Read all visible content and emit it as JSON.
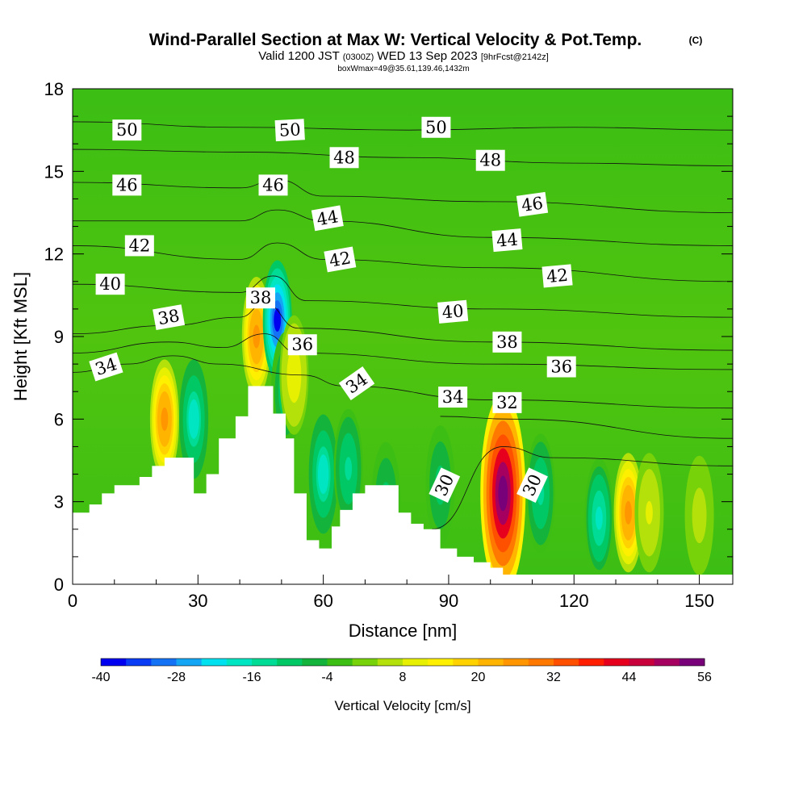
{
  "title": {
    "main": "Wind-Parallel Section at Max W: Vertical Velocity & Pot.Temp.",
    "main_suffix": "(C)",
    "valid_prefix": "Valid 1200 JST",
    "valid_zulu": "(0300Z)",
    "valid_date": "WED 13 Sep 2023",
    "forecast": "[9hrFcst@2142z]",
    "box_info": "boxWmax=49@35.61,139.46,1432m"
  },
  "colorbar": {
    "title": "Vertical Velocity [cm/s]",
    "tick_labels": [
      "-40",
      "-28",
      "-16",
      "-4",
      "8",
      "20",
      "32",
      "44",
      "56"
    ],
    "colors": [
      "#0000f0",
      "#0a3cf5",
      "#1473f5",
      "#14a5f5",
      "#00e1f0",
      "#00e6c3",
      "#00dc96",
      "#00c864",
      "#14b43c",
      "#3cbe14",
      "#78d20a",
      "#b4e10a",
      "#e6f000",
      "#fff000",
      "#ffd200",
      "#ffb400",
      "#ff9600",
      "#ff7800",
      "#ff5000",
      "#ff1e00",
      "#e6001e",
      "#c8003c",
      "#a5005f",
      "#780078"
    ]
  },
  "chart_data": {
    "type": "heatmap",
    "title": "Wind-Parallel Section at Max W: Vertical Velocity & Pot.Temp.",
    "xlabel": "Distance [nm]",
    "ylabel": "Height [Kft MSL]",
    "xlim": [
      0,
      158
    ],
    "ylim": [
      0,
      18
    ],
    "x_ticks": [
      0,
      30,
      60,
      90,
      120,
      150
    ],
    "y_ticks": [
      0,
      3,
      6,
      9,
      12,
      15,
      18
    ],
    "x_tick_labels": [
      "0",
      "30",
      "60",
      "90",
      "120",
      "150"
    ],
    "y_tick_labels": [
      "0",
      "3",
      "6",
      "9",
      "12",
      "15",
      "18"
    ],
    "colorbar_range": [
      -40,
      60
    ],
    "colorbar_units": "cm/s",
    "background_value": 2,
    "terrain_kft": [
      [
        0,
        2.6
      ],
      [
        4,
        2.9
      ],
      [
        7,
        3.3
      ],
      [
        10,
        3.6
      ],
      [
        16,
        3.9
      ],
      [
        19,
        4.3
      ],
      [
        22,
        4.6
      ],
      [
        26,
        4.6
      ],
      [
        29,
        3.3
      ],
      [
        32,
        4.0
      ],
      [
        35,
        5.3
      ],
      [
        39,
        6.1
      ],
      [
        42,
        7.2
      ],
      [
        45,
        7.2
      ],
      [
        48,
        6.2
      ],
      [
        51,
        5.3
      ],
      [
        53,
        3.3
      ],
      [
        56,
        1.6
      ],
      [
        59,
        1.3
      ],
      [
        62,
        2.1
      ],
      [
        64,
        2.7
      ],
      [
        67,
        3.3
      ],
      [
        70,
        3.6
      ],
      [
        74,
        3.6
      ],
      [
        78,
        2.6
      ],
      [
        81,
        2.2
      ],
      [
        84,
        2.0
      ],
      [
        88,
        1.3
      ],
      [
        92,
        1.0
      ],
      [
        96,
        0.8
      ],
      [
        100,
        0.6
      ],
      [
        103,
        0.35
      ],
      [
        158,
        0.35
      ]
    ],
    "velocity_cells": [
      {
        "x": 22,
        "y": 6.0,
        "peak": 30
      },
      {
        "x": 29,
        "y": 6.0,
        "peak": -18
      },
      {
        "x": 44,
        "y": 9.0,
        "peak": 30
      },
      {
        "x": 49,
        "y": 9.6,
        "peak": -36
      },
      {
        "x": 51,
        "y": 7.0,
        "peak": -10
      },
      {
        "x": 53,
        "y": 7.6,
        "peak": 14
      },
      {
        "x": 60,
        "y": 4.0,
        "peak": -18
      },
      {
        "x": 66,
        "y": 4.2,
        "peak": -12
      },
      {
        "x": 75,
        "y": 3.0,
        "peak": -8
      },
      {
        "x": 88,
        "y": 3.6,
        "peak": -8
      },
      {
        "x": 103,
        "y": 3.3,
        "peak": 60
      },
      {
        "x": 112,
        "y": 3.3,
        "peak": -12
      },
      {
        "x": 126,
        "y": 2.4,
        "peak": -16
      },
      {
        "x": 133,
        "y": 2.6,
        "peak": 30
      },
      {
        "x": 138,
        "y": 2.6,
        "peak": 10
      },
      {
        "x": 150,
        "y": 2.5,
        "peak": 8
      }
    ],
    "theta_contours": [
      {
        "value": 50,
        "points": [
          [
            0,
            16.8
          ],
          [
            40,
            16.6
          ],
          [
            80,
            16.5
          ],
          [
            120,
            16.6
          ],
          [
            158,
            16.5
          ]
        ]
      },
      {
        "value": 48,
        "points": [
          [
            0,
            15.8
          ],
          [
            40,
            15.7
          ],
          [
            80,
            15.5
          ],
          [
            120,
            15.3
          ],
          [
            158,
            15.2
          ]
        ]
      },
      {
        "value": 46,
        "points": [
          [
            0,
            14.6
          ],
          [
            40,
            14.4
          ],
          [
            49,
            14.7
          ],
          [
            60,
            14.1
          ],
          [
            100,
            13.9
          ],
          [
            158,
            13.5
          ]
        ]
      },
      {
        "value": 44,
        "points": [
          [
            0,
            13.2
          ],
          [
            40,
            13.2
          ],
          [
            49,
            13.6
          ],
          [
            60,
            13.2
          ],
          [
            100,
            12.6
          ],
          [
            158,
            12.3
          ]
        ]
      },
      {
        "value": 42,
        "points": [
          [
            0,
            12.3
          ],
          [
            40,
            11.8
          ],
          [
            49,
            12.4
          ],
          [
            60,
            11.8
          ],
          [
            100,
            11.5
          ],
          [
            158,
            11.0
          ]
        ]
      },
      {
        "value": 40,
        "points": [
          [
            0,
            10.9
          ],
          [
            40,
            10.6
          ],
          [
            48,
            11.2
          ],
          [
            56,
            10.3
          ],
          [
            100,
            10.0
          ],
          [
            158,
            9.7
          ]
        ]
      },
      {
        "value": 38,
        "points": [
          [
            0,
            9.1
          ],
          [
            23,
            9.4
          ],
          [
            40,
            9.7
          ],
          [
            46,
            10.2
          ],
          [
            54,
            9.3
          ],
          [
            100,
            8.8
          ],
          [
            158,
            8.5
          ]
        ]
      },
      {
        "value": 36,
        "points": [
          [
            0,
            8.4
          ],
          [
            23,
            8.8
          ],
          [
            36,
            8.6
          ],
          [
            46,
            9.1
          ],
          [
            54,
            8.4
          ],
          [
            100,
            8.0
          ],
          [
            158,
            7.8
          ]
        ]
      },
      {
        "value": 34,
        "points": [
          [
            0,
            7.7
          ],
          [
            13,
            8.0
          ],
          [
            24,
            8.3
          ],
          [
            35,
            8.0
          ],
          [
            55,
            7.6
          ],
          [
            65,
            7.2
          ],
          [
            100,
            6.7
          ],
          [
            158,
            6.4
          ]
        ]
      },
      {
        "value": 32,
        "points": [
          [
            88,
            6.1
          ],
          [
            105,
            6.0
          ],
          [
            158,
            5.3
          ]
        ]
      },
      {
        "value": 30,
        "points": [
          [
            86,
            2.0
          ],
          [
            103,
            5.0
          ],
          [
            115,
            4.6
          ],
          [
            158,
            4.3
          ]
        ]
      }
    ],
    "contour_labels": [
      {
        "text": "50",
        "x": 13,
        "y": 16.5,
        "angle": 0
      },
      {
        "text": "50",
        "x": 52,
        "y": 16.5,
        "angle": -3
      },
      {
        "text": "50",
        "x": 87,
        "y": 16.6,
        "angle": 0
      },
      {
        "text": "48",
        "x": 65,
        "y": 15.5,
        "angle": 0
      },
      {
        "text": "48",
        "x": 100,
        "y": 15.4,
        "angle": 0
      },
      {
        "text": "46",
        "x": 13,
        "y": 14.5,
        "angle": 0
      },
      {
        "text": "46",
        "x": 48,
        "y": 14.5,
        "angle": 0
      },
      {
        "text": "46",
        "x": 110,
        "y": 13.8,
        "angle": -8
      },
      {
        "text": "44",
        "x": 61,
        "y": 13.3,
        "angle": -10
      },
      {
        "text": "44",
        "x": 104,
        "y": 12.5,
        "angle": -5
      },
      {
        "text": "42",
        "x": 16,
        "y": 12.3,
        "angle": 0
      },
      {
        "text": "42",
        "x": 64,
        "y": 11.8,
        "angle": -10
      },
      {
        "text": "42",
        "x": 116,
        "y": 11.2,
        "angle": -5
      },
      {
        "text": "40",
        "x": 9,
        "y": 10.9,
        "angle": 0
      },
      {
        "text": "40",
        "x": 91,
        "y": 9.9,
        "angle": -5
      },
      {
        "text": "38",
        "x": 23,
        "y": 9.7,
        "angle": -10
      },
      {
        "text": "38",
        "x": 45,
        "y": 10.4,
        "angle": 0
      },
      {
        "text": "38",
        "x": 104,
        "y": 8.8,
        "angle": 0
      },
      {
        "text": "36",
        "x": 55,
        "y": 8.7,
        "angle": 0
      },
      {
        "text": "36",
        "x": 117,
        "y": 7.9,
        "angle": 0
      },
      {
        "text": "34",
        "x": 8,
        "y": 7.9,
        "angle": -18
      },
      {
        "text": "34",
        "x": 68,
        "y": 7.3,
        "angle": -35
      },
      {
        "text": "34",
        "x": 91,
        "y": 6.8,
        "angle": 0
      },
      {
        "text": "32",
        "x": 104,
        "y": 6.6,
        "angle": 0
      },
      {
        "text": "30",
        "x": 89,
        "y": 3.6,
        "angle": -65
      },
      {
        "text": "30",
        "x": 110,
        "y": 3.6,
        "angle": -65
      }
    ]
  }
}
